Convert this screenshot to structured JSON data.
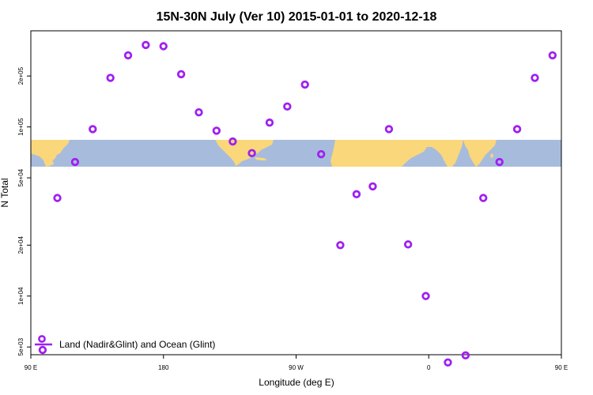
{
  "chart_data": {
    "type": "scatter",
    "title": "15N-30N July (Ver 10)   2015-01-01 to 2020-12-18",
    "xlabel": "Longitude (deg E)",
    "ylabel": "N Total",
    "x_scale": "linear",
    "y_scale": "log",
    "xlim": [
      90,
      450
    ],
    "ylim": [
      4500,
      370000
    ],
    "x_ticks": [
      {
        "value": 90,
        "label": "90 E"
      },
      {
        "value": 180,
        "label": "180"
      },
      {
        "value": 270,
        "label": "90 W"
      },
      {
        "value": 360,
        "label": "0"
      },
      {
        "value": 450,
        "label": "90 E"
      },
      {
        "value": 540,
        "label": "180"
      }
    ],
    "y_ticks": [
      {
        "value": 5000,
        "label": "5e+03"
      },
      {
        "value": 10000,
        "label": "1e+04"
      },
      {
        "value": 20000,
        "label": "2e+04"
      },
      {
        "value": 50000,
        "label": "5e+04"
      },
      {
        "value": 100000,
        "label": "1e+05"
      },
      {
        "value": 200000,
        "label": "2e+05"
      }
    ],
    "series": [
      {
        "name": "Land (Nadir&Glint) and Ocean (Glint)",
        "color": "#a020f0",
        "marker": "circle",
        "points": [
          [
            98,
            4800
          ],
          [
            108,
            38000
          ],
          [
            120,
            62000
          ],
          [
            132,
            97000
          ],
          [
            144,
            195000
          ],
          [
            156,
            265000
          ],
          [
            168,
            305000
          ],
          [
            180,
            300000
          ],
          [
            192,
            205000
          ],
          [
            204,
            122000
          ],
          [
            216,
            95000
          ],
          [
            227,
            82000
          ],
          [
            240,
            70000
          ],
          [
            252,
            106000
          ],
          [
            264,
            132000
          ],
          [
            276,
            178000
          ],
          [
            287,
            69000
          ],
          [
            300,
            20000
          ],
          [
            311,
            40000
          ],
          [
            322,
            44500
          ],
          [
            333,
            97000
          ],
          [
            346,
            20200
          ],
          [
            358,
            10000
          ],
          [
            373,
            4050
          ],
          [
            385,
            4460
          ],
          [
            397,
            38000
          ],
          [
            408,
            62000
          ],
          [
            420,
            97000
          ],
          [
            432,
            195000
          ],
          [
            444,
            265000
          ]
        ]
      }
    ],
    "legend": {
      "position": "bottom-left",
      "entries": [
        {
          "label": "Land (Nadir&Glint) and Ocean (Glint)",
          "color": "#a020f0"
        }
      ]
    },
    "background_map": {
      "description_visible": "world map strip",
      "ocean_color": "#a7bcdc",
      "land_color": "#f9d77a"
    },
    "grid": false
  }
}
